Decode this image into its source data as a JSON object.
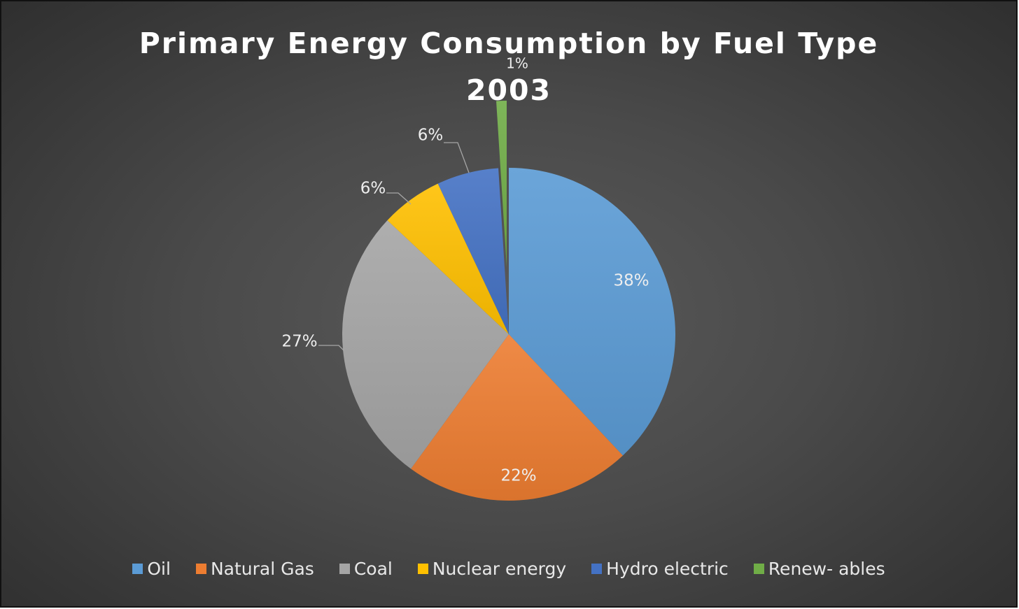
{
  "chart_data": {
    "type": "pie",
    "title_line1": "Primary Energy Consumption by Fuel Type",
    "title_line2": "2003",
    "start_angle_deg": 0,
    "direction": "clockwise",
    "slices": [
      {
        "name": "Oil",
        "value": 38,
        "label": "38%",
        "color": "#5b9bd5"
      },
      {
        "name": "Natural Gas",
        "value": 22,
        "label": "22%",
        "color": "#ed7d31"
      },
      {
        "name": "Coal",
        "value": 27,
        "label": "27%",
        "color": "#a5a5a5"
      },
      {
        "name": "Nuclear energy",
        "value": 6,
        "label": "6%",
        "color": "#ffc000"
      },
      {
        "name": "Hydro electric",
        "value": 6,
        "label": "6%",
        "color": "#4472c4"
      },
      {
        "name": "Renew- ables",
        "value": 1,
        "label": "1%",
        "color": "#70ad47"
      }
    ],
    "legend": {
      "position": "bottom"
    }
  }
}
